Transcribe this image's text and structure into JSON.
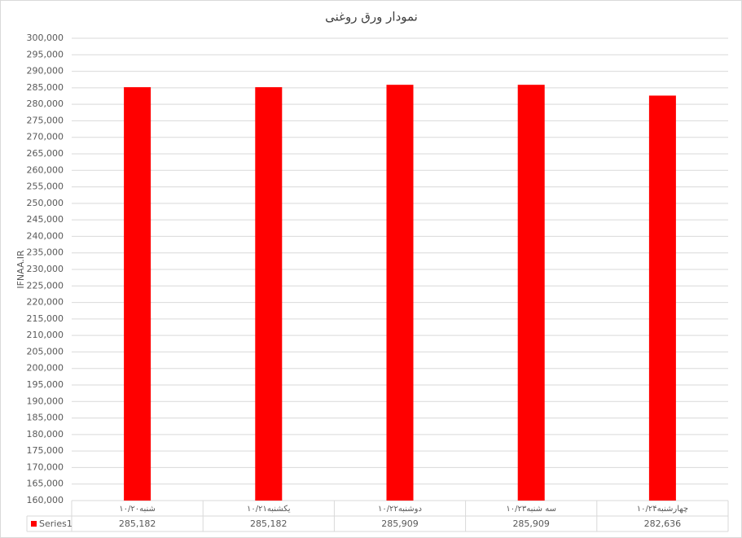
{
  "chart_data": {
    "type": "bar",
    "title": "نمودار ورق روغنی",
    "y_label": "IFNAA.IR",
    "categories": [
      "شنبه۱۰/۲۰",
      "یکشنبه۱۰/۲۱",
      "دوشنبه۱۰/۲۲",
      "سه شنبه۱۰/۲۳",
      "چهارشنبه۱۰/۲۴"
    ],
    "series": [
      {
        "name": "Series1",
        "color": "#ff0000",
        "values": [
          285182,
          285182,
          285909,
          285909,
          282636
        ],
        "value_labels": [
          "285,182",
          "285,182",
          "285,909",
          "285,909",
          "282,636"
        ]
      }
    ],
    "ylim": [
      160000,
      300000
    ],
    "yticks": [
      {
        "value": 160000,
        "label": "160,000"
      },
      {
        "value": 165000,
        "label": "165,000"
      },
      {
        "value": 170000,
        "label": "170,000"
      },
      {
        "value": 175000,
        "label": "175,000"
      },
      {
        "value": 180000,
        "label": "180,000"
      },
      {
        "value": 185000,
        "label": "185,000"
      },
      {
        "value": 190000,
        "label": "190,000"
      },
      {
        "value": 195000,
        "label": "195,000"
      },
      {
        "value": 200000,
        "label": "200,000"
      },
      {
        "value": 205000,
        "label": "205,000"
      },
      {
        "value": 210000,
        "label": "210,000"
      },
      {
        "value": 215000,
        "label": "215,000"
      },
      {
        "value": 220000,
        "label": "220,000"
      },
      {
        "value": 225000,
        "label": "225,000"
      },
      {
        "value": 230000,
        "label": "230,000"
      },
      {
        "value": 235000,
        "label": "235,000"
      },
      {
        "value": 240000,
        "label": "240,000"
      },
      {
        "value": 245000,
        "label": "245,000"
      },
      {
        "value": 250000,
        "label": "250,000"
      },
      {
        "value": 255000,
        "label": "255,000"
      },
      {
        "value": 260000,
        "label": "260,000"
      },
      {
        "value": 265000,
        "label": "265,000"
      },
      {
        "value": 270000,
        "label": "270,000"
      },
      {
        "value": 275000,
        "label": "275,000"
      },
      {
        "value": 280000,
        "label": "280,000"
      },
      {
        "value": 285000,
        "label": "285,000"
      },
      {
        "value": 290000,
        "label": "290,000"
      },
      {
        "value": 295000,
        "label": "295,000"
      },
      {
        "value": 300000,
        "label": "300,000"
      }
    ],
    "grid": true
  }
}
